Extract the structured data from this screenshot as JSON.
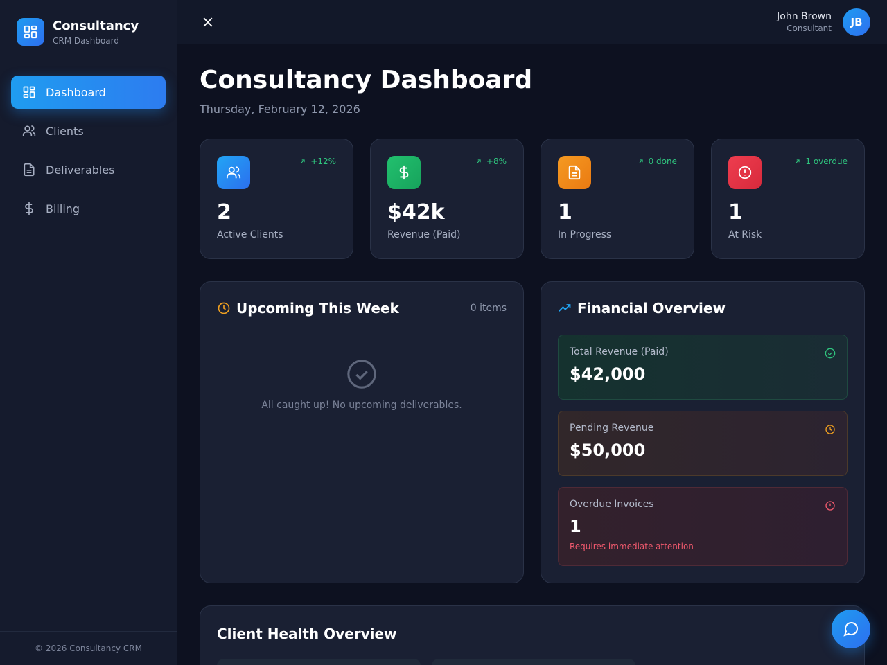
{
  "sidebar": {
    "brand_title": "Consultancy",
    "brand_subtitle": "CRM Dashboard",
    "items": [
      {
        "label": "Dashboard",
        "icon": "grid-icon",
        "active": true
      },
      {
        "label": "Clients",
        "icon": "users-icon"
      },
      {
        "label": "Deliverables",
        "icon": "document-icon"
      },
      {
        "label": "Billing",
        "icon": "dollar-icon"
      }
    ],
    "footer": "© 2026 Consultancy CRM"
  },
  "topbar": {
    "close_icon": "close-icon",
    "user_name": "John Brown",
    "user_role": "Consultant",
    "avatar_initials": "JB"
  },
  "main": {
    "title": "Consultancy Dashboard",
    "date": "Thursday, February 12, 2026"
  },
  "stats": [
    {
      "value": "2",
      "label": "Active Clients",
      "trend": "+12%",
      "icon": "users-icon",
      "color": "#1f8df0"
    },
    {
      "value": "$42k",
      "label": "Revenue (Paid)",
      "trend": "+8%",
      "icon": "dollar-icon",
      "color": "#22b56a"
    },
    {
      "value": "1",
      "label": "In Progress",
      "trend": "0 done",
      "icon": "document-icon",
      "color": "#f08a1c"
    },
    {
      "value": "1",
      "label": "At Risk",
      "trend": "1 overdue",
      "icon": "alert-icon",
      "color": "#e8384a"
    }
  ],
  "upcoming": {
    "title": "Upcoming This Week",
    "count": "0 items",
    "empty_text": "All caught up! No upcoming deliverables."
  },
  "financial": {
    "title": "Financial Overview",
    "cards": [
      {
        "label": "Total Revenue (Paid)",
        "value": "$42,000",
        "icon": "check-circle-icon",
        "color": "#2fc47e"
      },
      {
        "label": "Pending Revenue",
        "value": "$50,000",
        "icon": "clock-icon",
        "color": "#f0a020"
      },
      {
        "label": "Overdue Invoices",
        "value": "1",
        "note": "Requires immediate attention",
        "icon": "alert-icon",
        "color": "#f0596d"
      }
    ]
  },
  "health": {
    "title": "Client Health Overview"
  },
  "fab_icon": "chat-icon"
}
